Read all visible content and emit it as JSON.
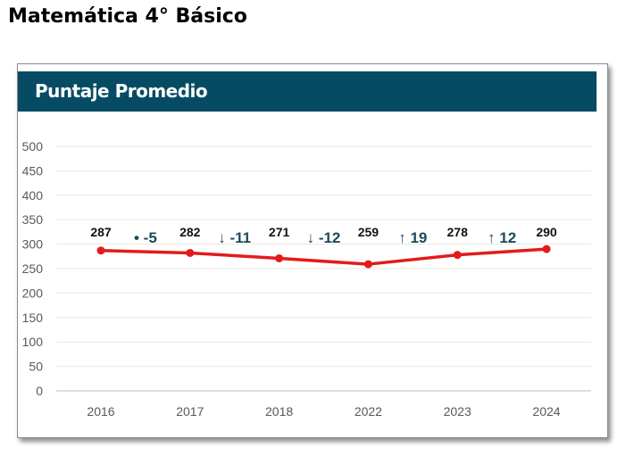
{
  "page": {
    "title": "Matemática 4° Básico"
  },
  "card": {
    "title": "Puntaje Promedio"
  },
  "colors": {
    "header_bg": "#054b63",
    "line": "#e31b1b",
    "change_text": "#1b4a5a",
    "grid": "#e6e6e6"
  },
  "chart_data": {
    "type": "line",
    "categories": [
      "2016",
      "2017",
      "2018",
      "2022",
      "2023",
      "2024"
    ],
    "values": [
      287,
      282,
      271,
      259,
      278,
      290
    ],
    "data_labels": [
      "287",
      "282",
      "271",
      "259",
      "278",
      "290"
    ],
    "ylim": [
      0,
      500
    ],
    "yticks": [
      "0",
      "50",
      "100",
      "150",
      "200",
      "250",
      "300",
      "350",
      "400",
      "450",
      "500"
    ],
    "grid": true,
    "changes": [
      {
        "symbol": "•",
        "value": "-5"
      },
      {
        "symbol": "↓",
        "value": "-11"
      },
      {
        "symbol": "↓",
        "value": "-12"
      },
      {
        "symbol": "↑",
        "value": "19"
      },
      {
        "symbol": "↑",
        "value": "12"
      }
    ]
  }
}
